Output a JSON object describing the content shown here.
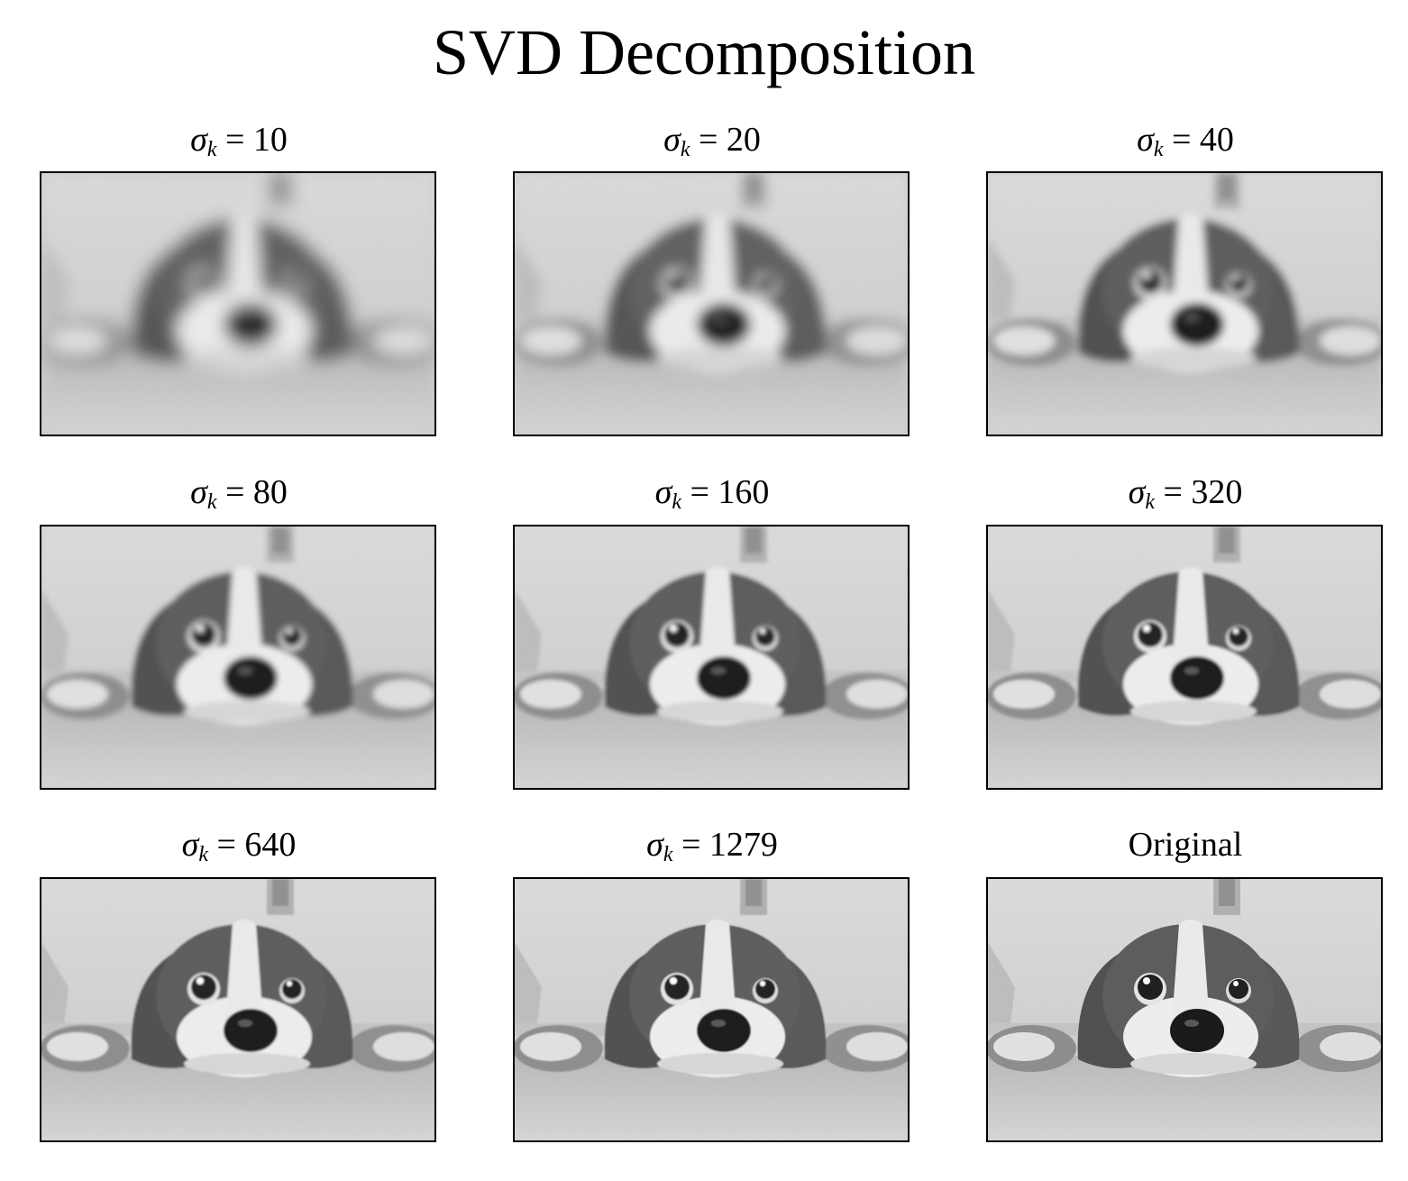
{
  "title": "SVD Decomposition",
  "panels": [
    {
      "sym": "σ",
      "sub": "k",
      "rest": " = 10",
      "rank": 10
    },
    {
      "sym": "σ",
      "sub": "k",
      "rest": " = 20",
      "rank": 20
    },
    {
      "sym": "σ",
      "sub": "k",
      "rest": " = 40",
      "rank": 40
    },
    {
      "sym": "σ",
      "sub": "k",
      "rest": " = 80",
      "rank": 80
    },
    {
      "sym": "σ",
      "sub": "k",
      "rest": " = 160",
      "rank": 160
    },
    {
      "sym": "σ",
      "sub": "k",
      "rest": " = 320",
      "rank": 320
    },
    {
      "sym": "σ",
      "sub": "k",
      "rest": " = 640",
      "rank": 640
    },
    {
      "sym": "σ",
      "sub": "k",
      "rest": " = 1279",
      "rank": 1279
    },
    {
      "label": "Original"
    }
  ]
}
